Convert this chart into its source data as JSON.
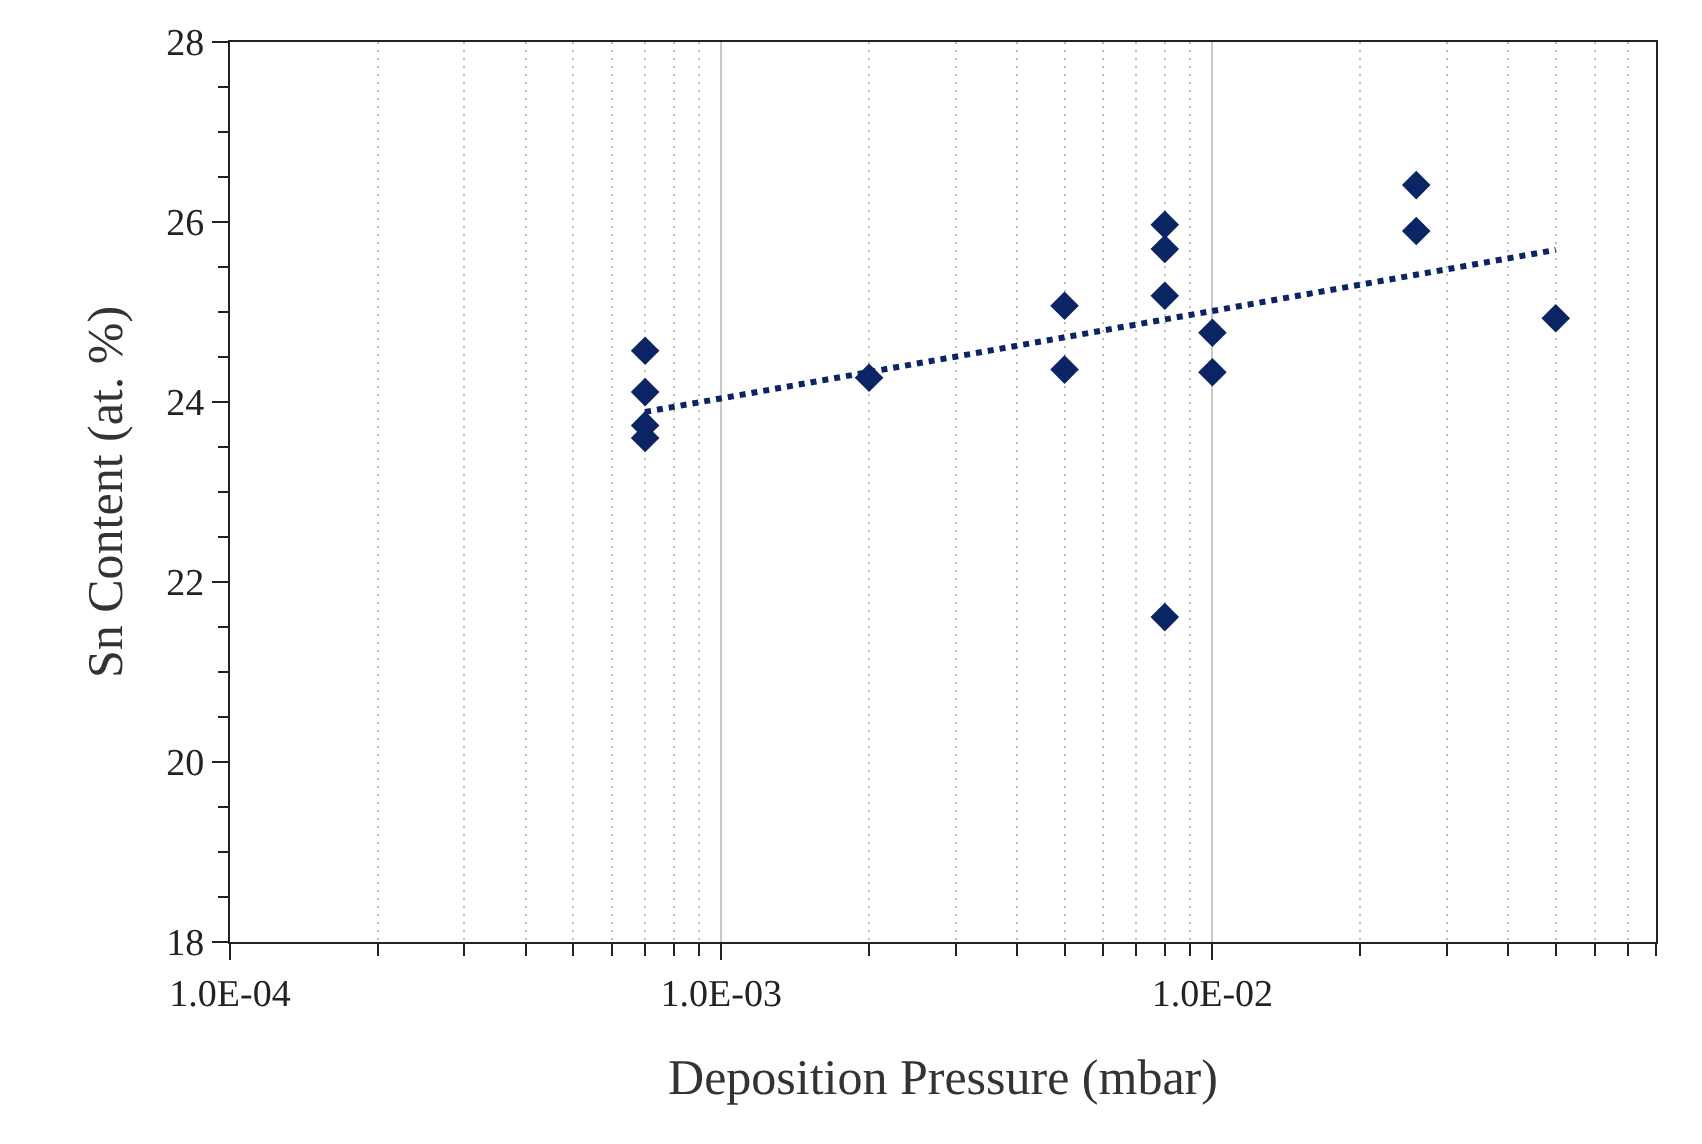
{
  "chart_data": {
    "type": "scatter",
    "xlabel": "Deposition Pressure (mbar)",
    "ylabel": "Sn Content (at. %)",
    "log": "x",
    "grid": "x",
    "marker": "diamond",
    "xlim": [
      0.0001,
      0.08
    ],
    "ylim": [
      18,
      28
    ],
    "xticks": [
      {
        "value": 0.0001,
        "label": "1.0E-04"
      },
      {
        "value": 0.001,
        "label": "1.0E-03"
      },
      {
        "value": 0.01,
        "label": "1.0E-02"
      }
    ],
    "yticks": [
      18,
      20,
      22,
      24,
      26,
      28
    ],
    "series": [
      {
        "color": "#0b2463",
        "x": [
          0.0007,
          0.0007,
          0.0007,
          0.0007,
          0.002,
          0.005,
          0.005,
          0.008,
          0.008,
          0.008,
          0.008,
          0.01,
          0.01,
          0.026,
          0.026,
          0.05
        ],
        "values": [
          24.57,
          24.11,
          23.74,
          23.6,
          24.27,
          25.07,
          24.36,
          25.97,
          25.7,
          25.18,
          21.61,
          24.77,
          24.33,
          26.41,
          25.9,
          24.93
        ]
      },
      {
        "type": "line",
        "color": "#0b2463",
        "line_style": "dotted",
        "marker": "none",
        "x": [
          0.0007,
          0.05
        ],
        "values": [
          23.89,
          25.69
        ]
      }
    ]
  }
}
